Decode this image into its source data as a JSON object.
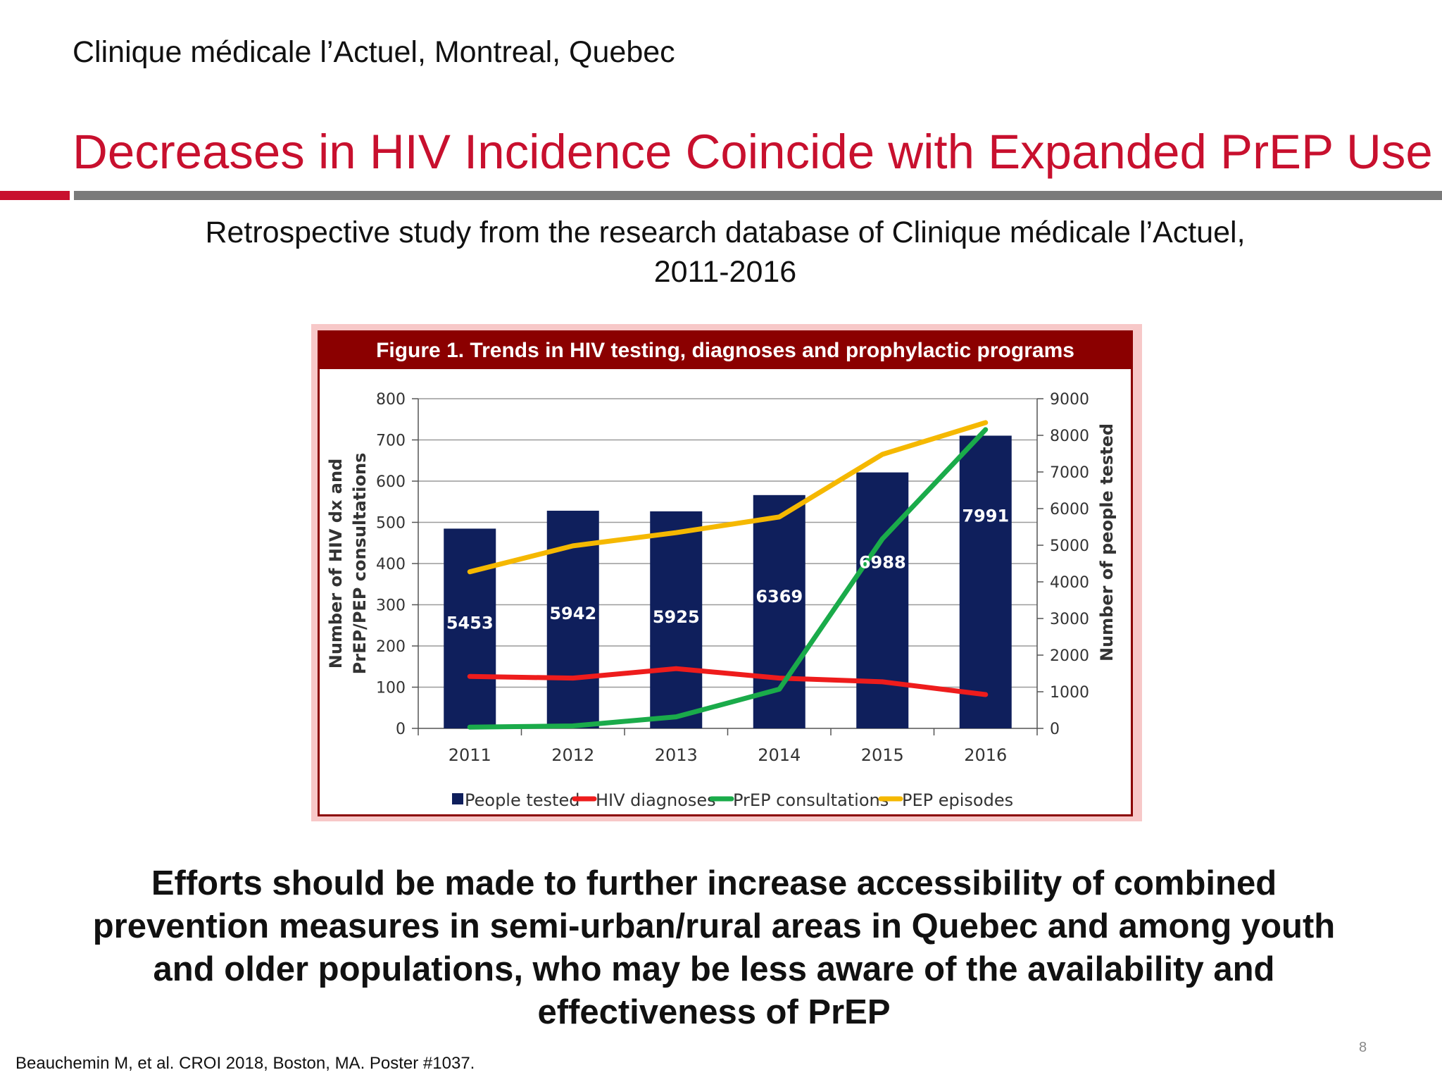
{
  "header": {
    "location": "Clinique médicale l’Actuel, Montreal, Quebec",
    "title": "Decreases in HIV Incidence Coincide with Expanded PrEP Use",
    "subtitle_line1": "Retrospective study from the research database of Clinique médicale l’Actuel,",
    "subtitle_line2": "2011-2016"
  },
  "figure": {
    "title": "Figure 1. Trends in HIV testing, diagnoses and prophylactic programs"
  },
  "chart_data": {
    "type": "bar",
    "title": "Figure 1. Trends in HIV testing, diagnoses and prophylactic programs",
    "categories": [
      "2011",
      "2012",
      "2013",
      "2014",
      "2015",
      "2016"
    ],
    "ylabel_left_line1": "Number of HIV dx and",
    "ylabel_left_line2": "PrEP/PEP consultations",
    "ylabel_right": "Number of people tested",
    "ylim_left": [
      0,
      800
    ],
    "ylim_right": [
      0,
      9000
    ],
    "yticks_left": [
      "0",
      "100",
      "200",
      "300",
      "400",
      "500",
      "600",
      "700",
      "800"
    ],
    "yticks_right": [
      "0",
      "1000",
      "2000",
      "3000",
      "4000",
      "5000",
      "6000",
      "7000",
      "8000",
      "9000"
    ],
    "grid": true,
    "legend_position": "bottom",
    "series": [
      {
        "name": "People tested",
        "type": "bar",
        "axis": "right",
        "color": "#0f1f5c",
        "values": [
          5453,
          5942,
          5925,
          6369,
          6988,
          7991
        ],
        "labels": [
          "5453",
          "5942",
          "5925",
          "6369",
          "6988",
          "7991"
        ]
      },
      {
        "name": "HIV diagnoses",
        "type": "line",
        "axis": "left",
        "color": "#ee1c1c",
        "values": [
          126,
          122,
          145,
          122,
          113,
          82
        ]
      },
      {
        "name": "PrEP consultations",
        "type": "line",
        "axis": "left",
        "color": "#1aab4a",
        "values": [
          3,
          6,
          28,
          95,
          460,
          725
        ]
      },
      {
        "name": "PEP episodes",
        "type": "line",
        "axis": "left",
        "color": "#f5b800",
        "values": [
          380,
          443,
          475,
          513,
          665,
          742
        ]
      }
    ]
  },
  "conclusion": {
    "line1": "Efforts should be made to further increase accessibility of combined",
    "line2": "prevention measures in semi-urban/rural areas in Quebec and among youth",
    "line3": "and older populations, who may be less aware of the availability and",
    "line4": "effectiveness of PrEP"
  },
  "footer": {
    "citation": "Beauchemin M, et al. CROI 2018, Boston, MA. Poster #1037.",
    "page_number": "8"
  }
}
